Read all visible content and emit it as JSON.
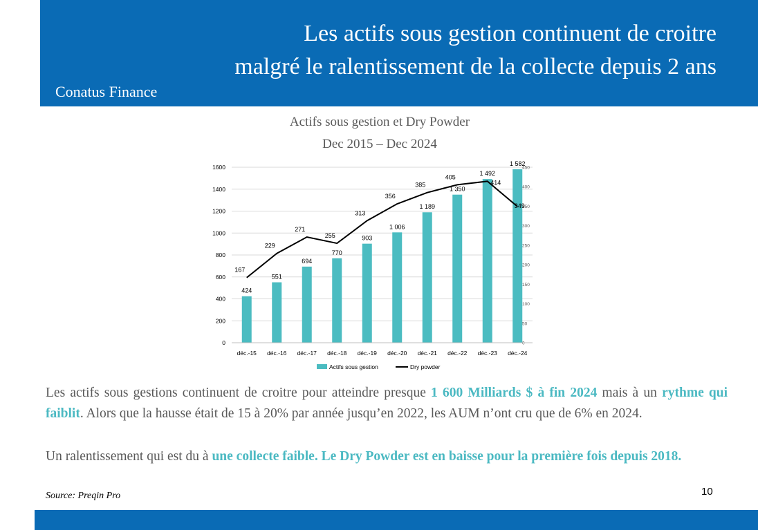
{
  "header": {
    "title_line1": "Les actifs sous gestion continuent de croitre",
    "title_line2": "malgré le ralentissement de la collecte depuis 2 ans",
    "company": "Conatus Finance"
  },
  "colors": {
    "brand_blue": "#0a6bb5",
    "bar_teal": "#4bbcc1",
    "line_black": "#000000",
    "highlight_teal": "#4bb9c2",
    "body_gray": "#595959"
  },
  "chart_data": {
    "type": "bar",
    "title": "Actifs sous gestion et Dry Powder",
    "subtitle": "Dec 2015 – Dec 2024",
    "categories": [
      "déc.-15",
      "déc.-16",
      "déc.-17",
      "déc.-18",
      "déc.-19",
      "déc.-20",
      "déc.-21",
      "déc.-22",
      "déc.-23",
      "déc.-24"
    ],
    "series": [
      {
        "name": "Actifs sous gestion",
        "type": "bar",
        "axis": "left",
        "values": [
          424,
          551,
          694,
          770,
          903,
          1006,
          1189,
          1350,
          1492,
          1582
        ],
        "labels": [
          "424",
          "551",
          "694",
          "770",
          "903",
          "1 006",
          "1 189",
          "1 350",
          "1 492",
          "1 582"
        ]
      },
      {
        "name": "Dry powder",
        "type": "line",
        "axis": "right",
        "values": [
          167,
          229,
          271,
          255,
          313,
          356,
          385,
          405,
          414,
          349
        ],
        "labels": [
          "167",
          "229",
          "271",
          "255",
          "313",
          "356",
          "385",
          "405",
          "414",
          "349"
        ]
      }
    ],
    "ylim": [
      0,
      1600
    ],
    "yticks": [
      0,
      200,
      400,
      600,
      800,
      1000,
      1200,
      1400,
      1600
    ],
    "y2lim": [
      0,
      450
    ],
    "y2ticks": [
      0,
      50,
      100,
      150,
      200,
      250,
      300,
      350,
      400,
      450
    ],
    "grid": true,
    "legend": "bottom"
  },
  "body": {
    "p1_a": "Les actifs sous gestions continuent de croitre pour atteindre presque ",
    "p1_b": "1 600 Milliards $ à fin 2024",
    "p1_c": " mais à un ",
    "p1_d": "rythme qui faiblit",
    "p1_e": ". Alors que la hausse était de 15 à 20% par année jusqu’en 2022, les AUM n’ont cru que de 6% en 2024.",
    "p2_a": "Un ralentissement qui est du à ",
    "p2_b": "une collecte faible. Le Dry Powder est en baisse pour la première fois depuis 2018."
  },
  "footer": {
    "source": "Source: Preqin Pro",
    "page_number": "10"
  }
}
